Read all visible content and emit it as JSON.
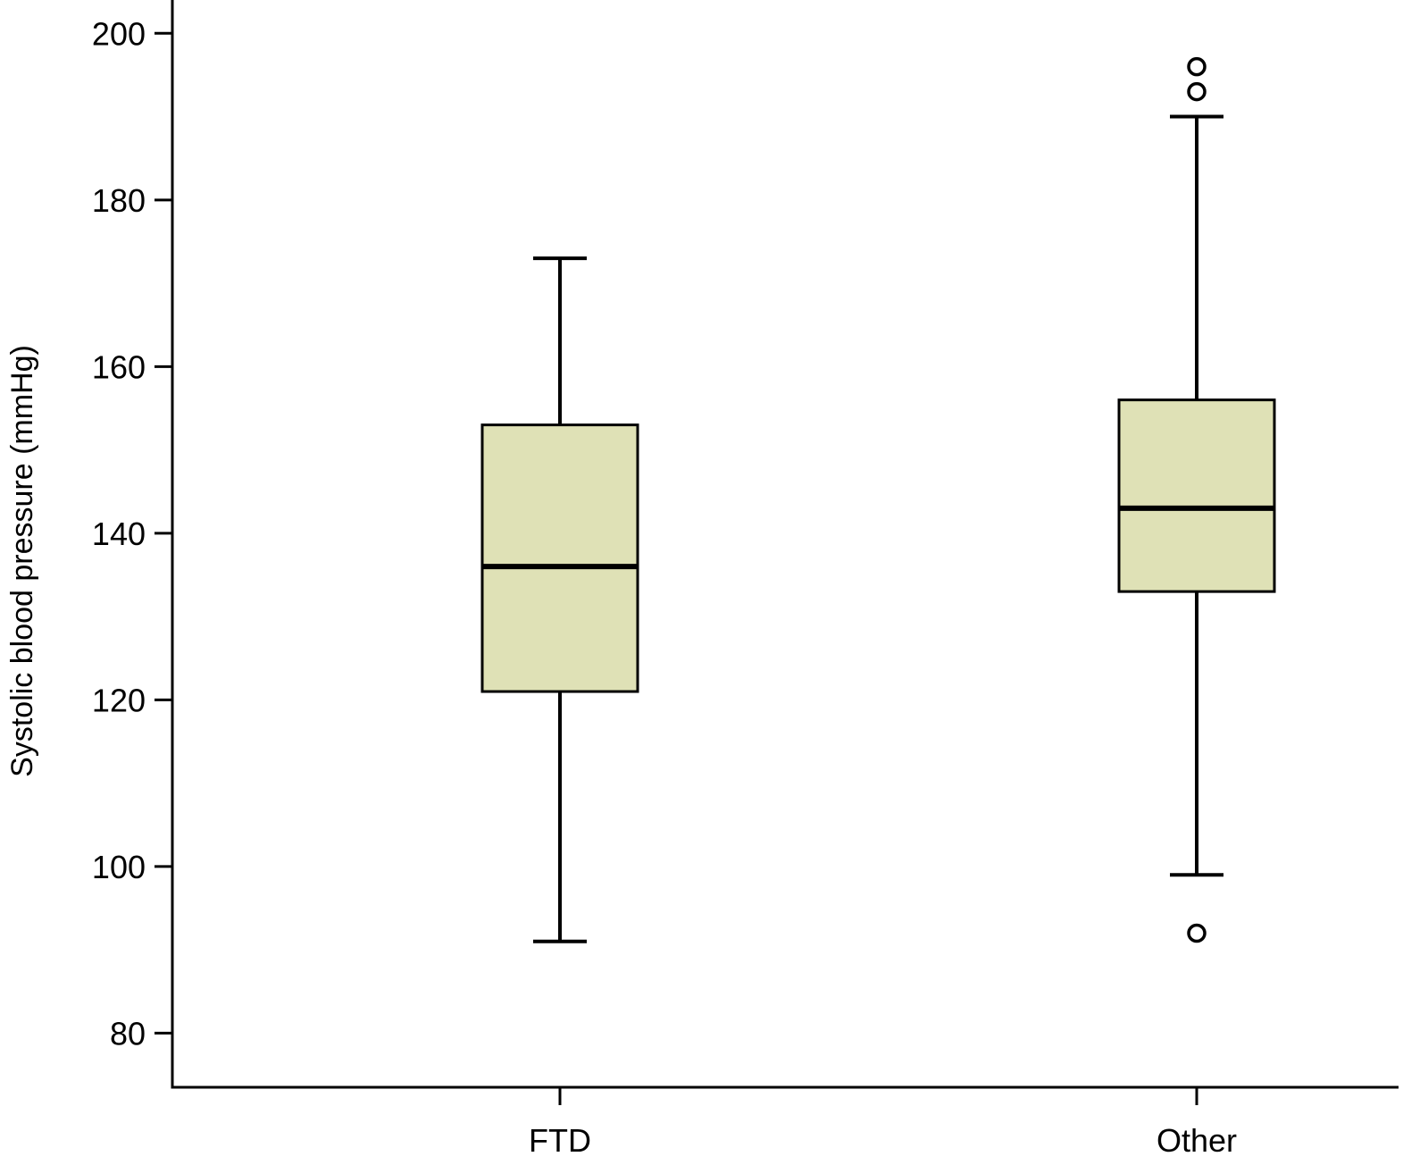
{
  "chart_data": {
    "type": "box",
    "title": "",
    "xlabel": "",
    "ylabel": "Systolic blood pressure (mmHg)",
    "ylim": [
      73.5,
      204
    ],
    "yticks": [
      80,
      100,
      120,
      140,
      160,
      180,
      200
    ],
    "grid": false,
    "legend": "none",
    "box_fill": "#dfe1b6",
    "line_color": "#000000",
    "categories": [
      "FTD",
      "Other"
    ],
    "boxes": [
      {
        "category": "FTD",
        "whisker_low": 91,
        "q1": 121,
        "median": 136,
        "q3": 153,
        "whisker_high": 173,
        "outliers": []
      },
      {
        "category": "Other",
        "whisker_low": 99,
        "q1": 133,
        "median": 143,
        "q3": 156,
        "whisker_high": 190,
        "outliers": [
          92,
          193,
          196
        ]
      }
    ]
  }
}
